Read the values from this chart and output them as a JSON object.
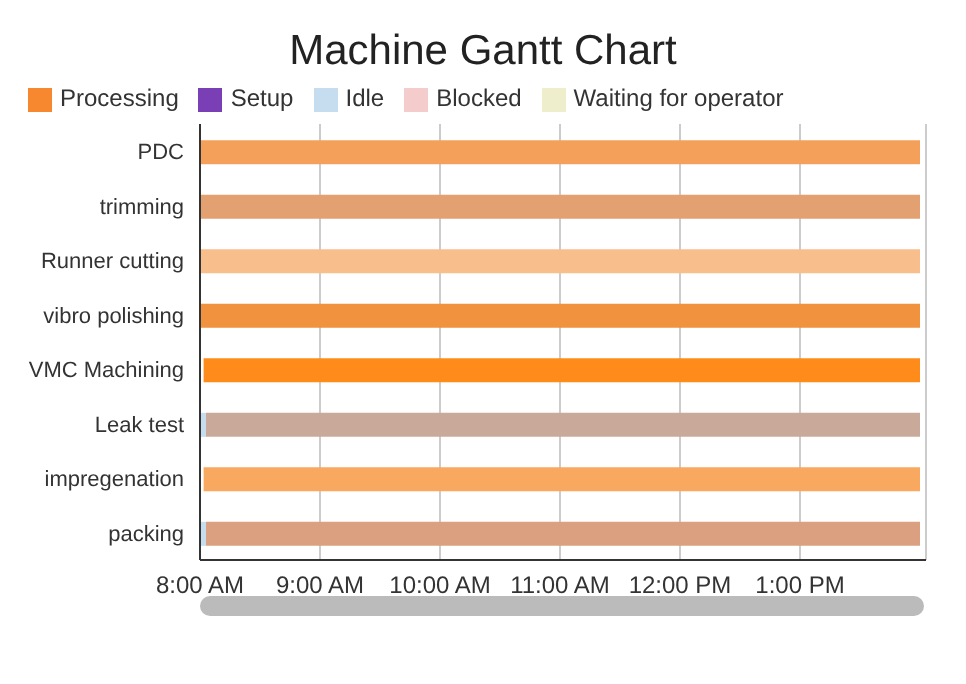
{
  "chart_data": {
    "type": "bar",
    "title": "Machine Gantt Chart",
    "orientation": "horizontal",
    "categories": [
      "PDC",
      "trimming",
      "Runner cutting",
      "vibro polishing",
      "VMC Machining",
      "Leak test",
      "impregenation",
      "packing"
    ],
    "series": [
      {
        "name": "Processing",
        "color": "#f7882f",
        "colors": [
          "#f5a05a",
          "#e3a070",
          "#f8be8c",
          "#f0923e",
          "#ff8c1a",
          "#c9aa9a",
          "#f9a860",
          "#dba07f"
        ],
        "base": [
          8,
          8,
          8,
          8,
          8.03,
          8.05,
          8.03,
          8.05
        ],
        "values": [
          6,
          6,
          6,
          6,
          5.97,
          5.95,
          5.97,
          5.95
        ]
      },
      {
        "name": "Setup",
        "color": "#7b3fb5",
        "values": [
          null,
          null,
          null,
          null,
          null,
          null,
          null,
          null
        ]
      },
      {
        "name": "Idle",
        "color": "#c6dcef",
        "base": [
          null,
          null,
          null,
          null,
          null,
          8,
          null,
          8
        ],
        "values": [
          null,
          null,
          null,
          null,
          null,
          0.05,
          null,
          0.05
        ]
      },
      {
        "name": "Blocked",
        "color": "#f4cccc",
        "values": [
          null,
          null,
          null,
          null,
          null,
          null,
          null,
          null
        ]
      },
      {
        "name": "Waiting for operator",
        "color": "#eeeecc",
        "values": [
          null,
          null,
          null,
          null,
          null,
          null,
          null,
          null
        ]
      }
    ],
    "xlim": [
      8,
      14.05
    ],
    "xticks": [
      {
        "value": 8,
        "label": "8:00 AM"
      },
      {
        "value": 9,
        "label": "9:00 AM"
      },
      {
        "value": 10,
        "label": "10:00 AM"
      },
      {
        "value": 11,
        "label": "11:00 AM"
      },
      {
        "value": 12,
        "label": "12:00 PM"
      },
      {
        "value": 13,
        "label": "1:00 PM"
      }
    ],
    "grid": "x",
    "legend": "top"
  }
}
